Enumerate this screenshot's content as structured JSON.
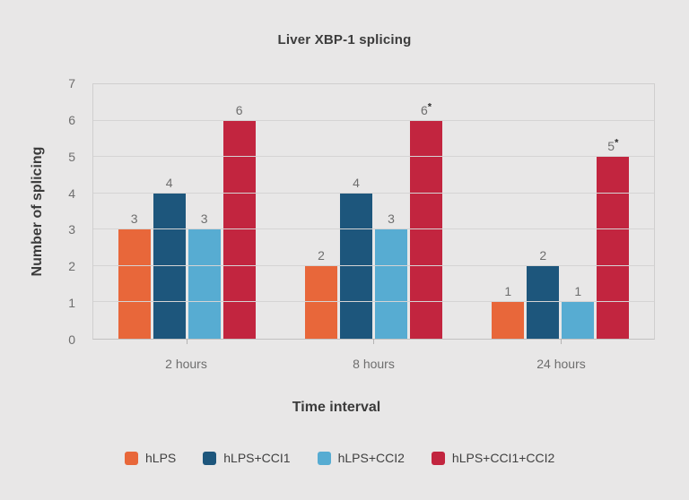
{
  "chart_data": {
    "type": "bar",
    "title": "Liver XBP-1 splicing",
    "xlabel": "Time interval",
    "ylabel": "Number of splicing",
    "ylim": [
      0,
      7
    ],
    "yticks": [
      0,
      1,
      2,
      3,
      4,
      5,
      6,
      7
    ],
    "categories": [
      "2 hours",
      "8 hours",
      "24 hours"
    ],
    "series": [
      {
        "name": "hLPS",
        "color": "#e8673a",
        "values": [
          3,
          2,
          1
        ],
        "annotations": [
          "",
          "",
          ""
        ]
      },
      {
        "name": "hLPS+CCI1",
        "color": "#1d567c",
        "values": [
          4,
          4,
          2
        ],
        "annotations": [
          "",
          "",
          ""
        ]
      },
      {
        "name": "hLPS+CCI2",
        "color": "#57acd2",
        "values": [
          3,
          3,
          1
        ],
        "annotations": [
          "",
          "",
          ""
        ]
      },
      {
        "name": "hLPS+CCI1+CCI2",
        "color": "#c2253f",
        "values": [
          6,
          6,
          5
        ],
        "annotations": [
          "",
          "*",
          "*"
        ]
      }
    ],
    "grid": true,
    "legend_position": "bottom",
    "colors": {
      "background": "#e8e7e7",
      "gridline": "#d5d4d4",
      "axis_line": "#c2c1c1",
      "title_text": "#3c3c3c",
      "tick_text": "#6e6e6e",
      "annotation_text": "#2e2e2e"
    }
  }
}
